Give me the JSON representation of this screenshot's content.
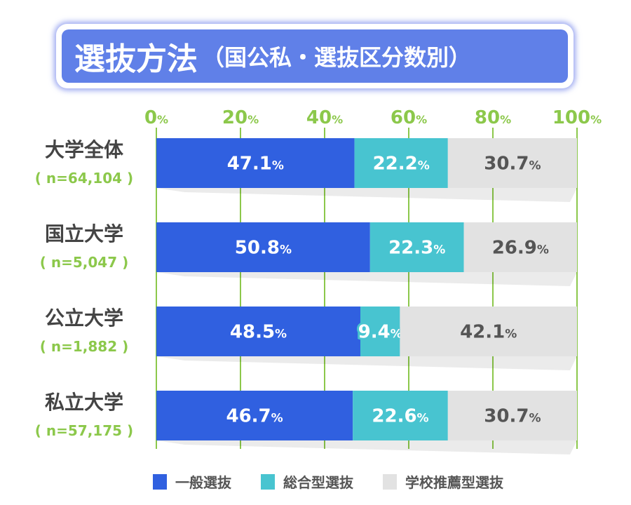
{
  "chart_data": {
    "type": "bar",
    "orientation": "horizontal-stacked",
    "title": "選抜方法",
    "subtitle": "（国公私・選抜区分数別）",
    "categories": [
      "大学全体",
      "国立大学",
      "公立大学",
      "私立大学"
    ],
    "category_n": [
      "( n=64,104 )",
      "( n=5,047 )",
      "( n=1,882 )",
      "( n=57,175 )"
    ],
    "xlim": [
      0,
      100
    ],
    "xticks": [
      0,
      20,
      40,
      60,
      80,
      100
    ],
    "tick_suffix": "%",
    "grid": true,
    "legend_placement": "bottom",
    "series": [
      {
        "name": "一般選抜",
        "color": "#3060e0",
        "label_color": "#ffffff",
        "values": [
          47.1,
          50.8,
          48.5,
          46.7
        ]
      },
      {
        "name": "総合型選抜",
        "color": "#48c4d0",
        "label_color": "#ffffff",
        "values": [
          22.2,
          22.3,
          9.4,
          22.6
        ]
      },
      {
        "name": "学校推薦型選抜",
        "color": "#e2e2e2",
        "label_color": "#555555",
        "values": [
          30.7,
          26.9,
          42.1,
          30.7
        ]
      }
    ]
  }
}
